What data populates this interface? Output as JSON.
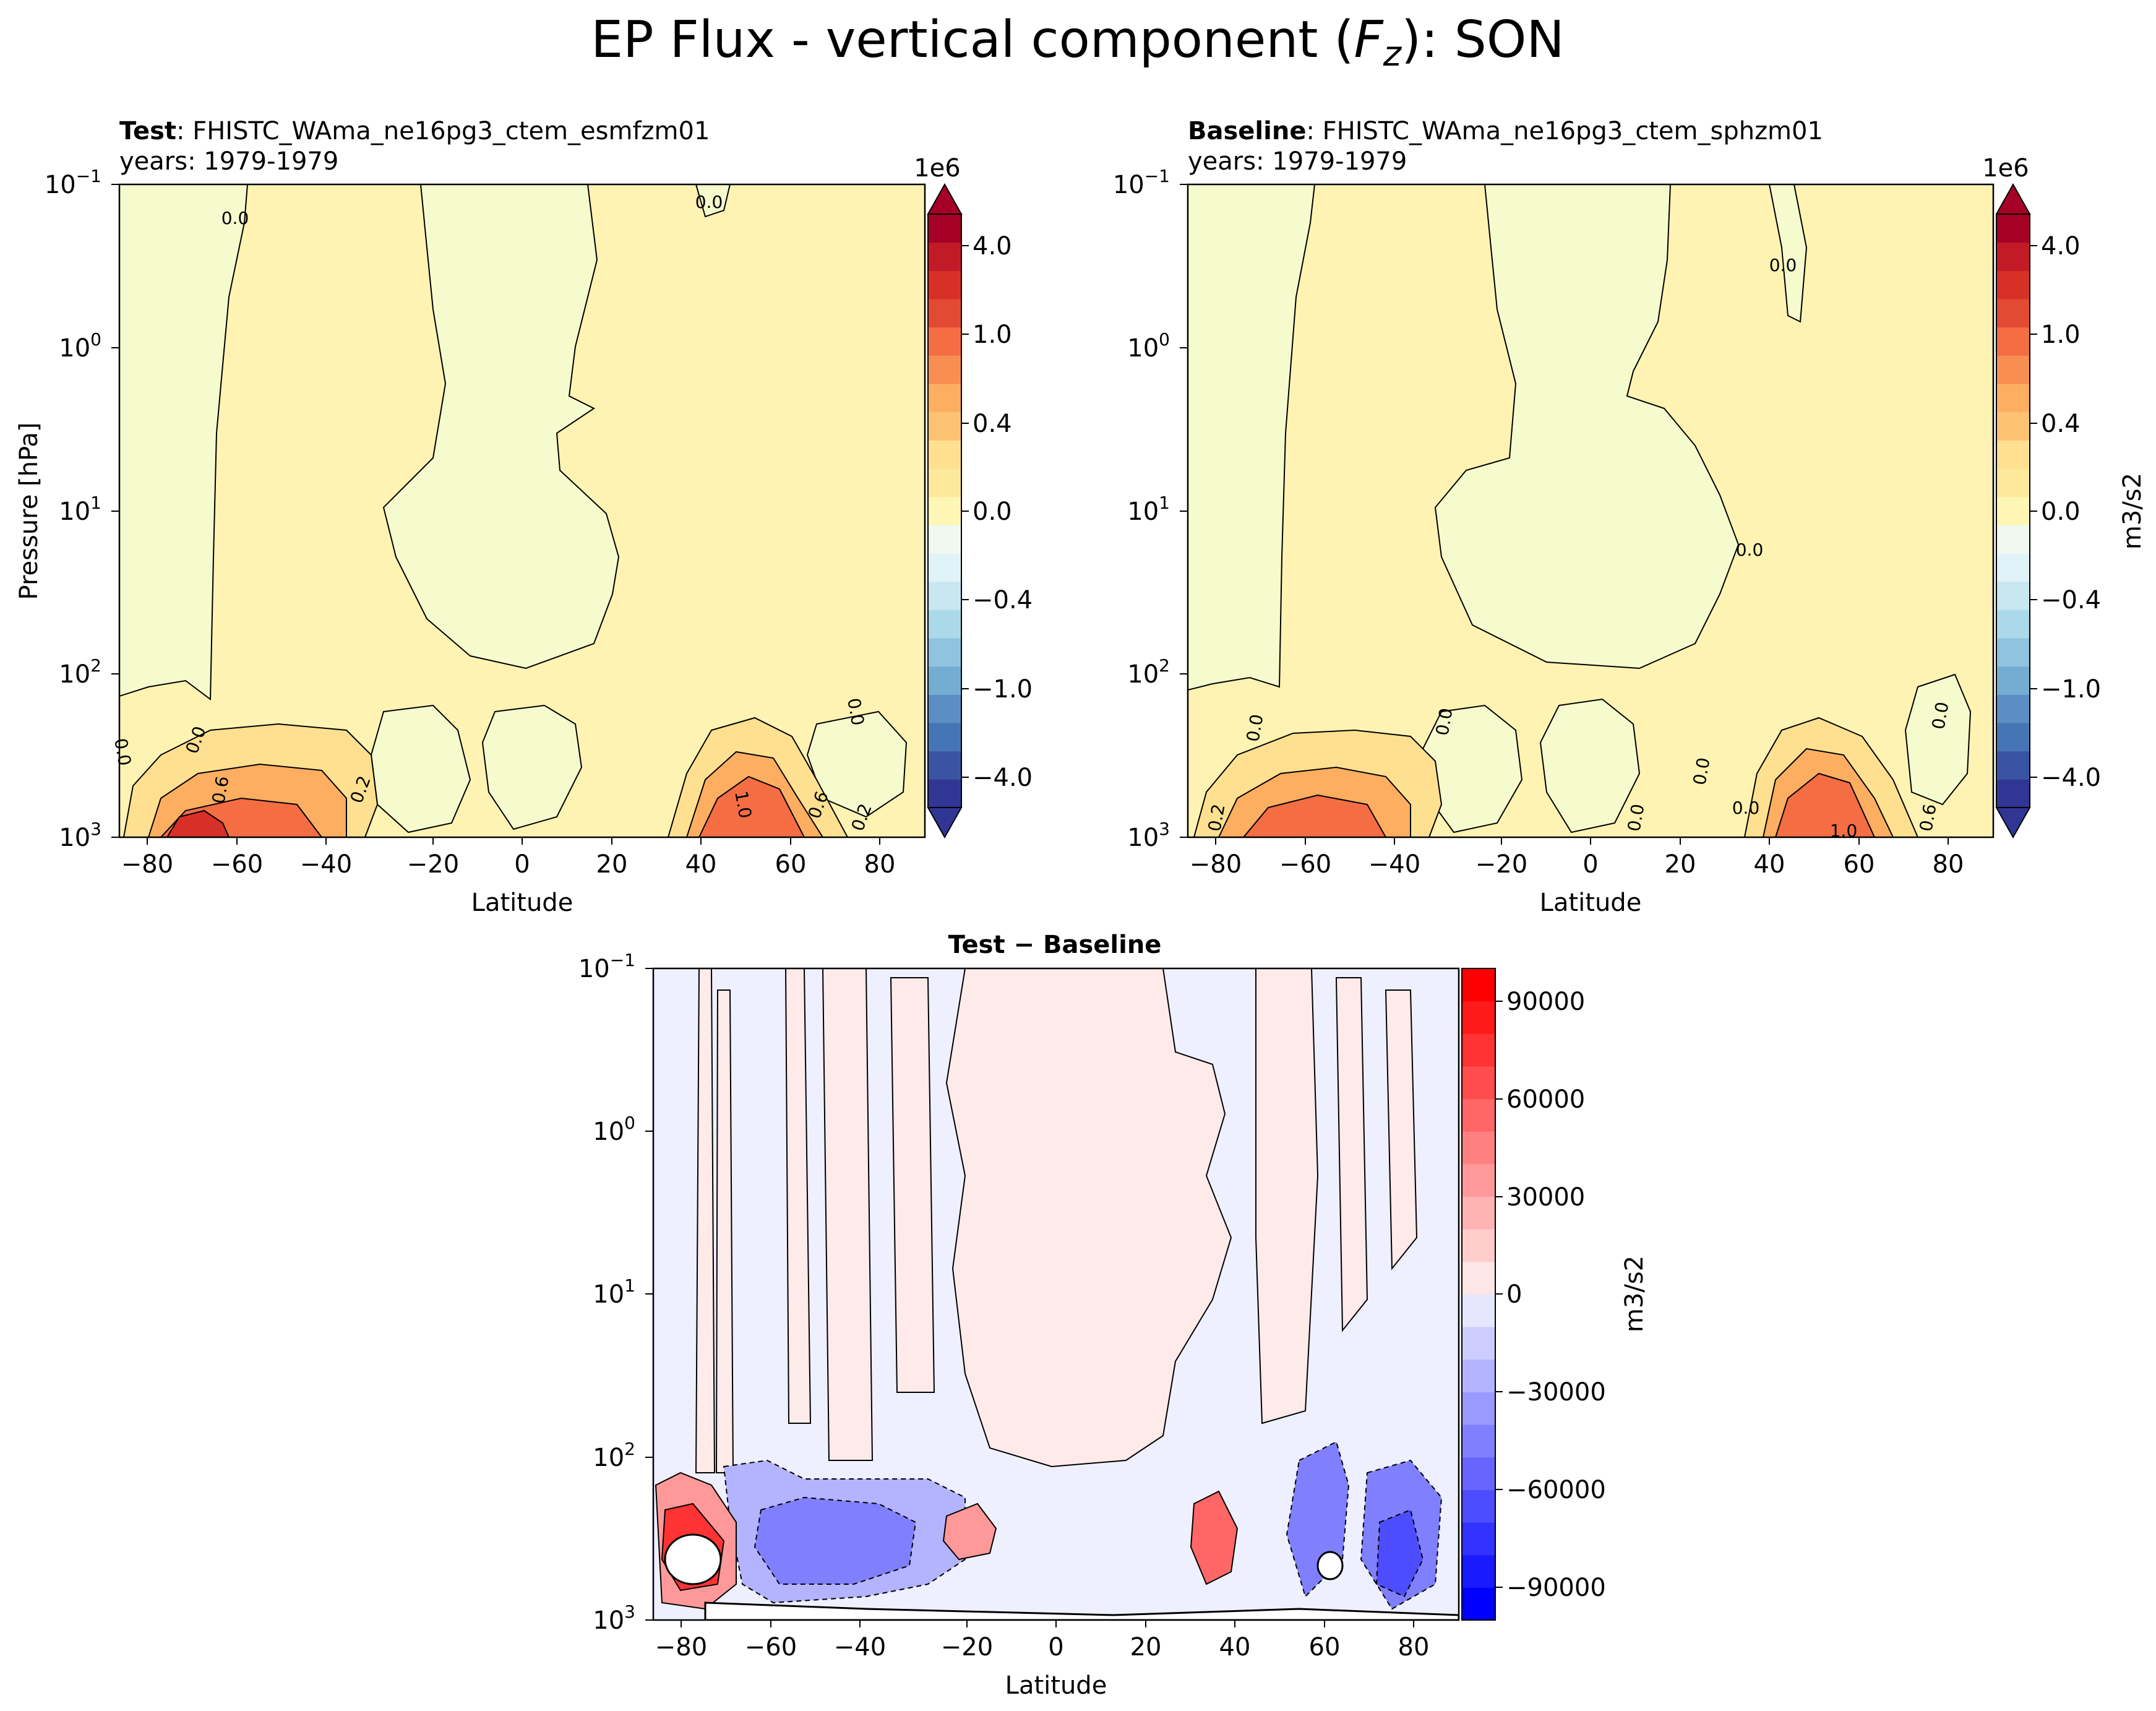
{
  "chart_data": {
    "suptitle_prefix": "EP Flux - vertical component (",
    "suptitle_var": "F",
    "suptitle_sub": "z",
    "suptitle_suffix": "): SON",
    "panels": [
      {
        "id": "test",
        "type": "contourf",
        "title_bold": "Test",
        "title_rest": ": FHISTC_WAma_ne16pg3_ctem_esmfzm01",
        "years_text": "years: 1979-1979",
        "xlabel": "Latitude",
        "ylabel": "Pressure [hPa]",
        "xlim": [
          -90,
          90
        ],
        "xticks": [
          "−80",
          "−60",
          "−40",
          "−20",
          "0",
          "20",
          "40",
          "60",
          "80"
        ],
        "ylim_hpa": [
          1000,
          0.1
        ],
        "yscale": "log",
        "ytick_bases": [
          "10",
          "10",
          "10",
          "10",
          "10"
        ],
        "ytick_exps": [
          "−1",
          "0",
          "1",
          "2",
          "3"
        ],
        "contour_labels": [
          "0.0",
          "0.0",
          "0.0",
          "0.0",
          "0.2",
          "0.2",
          "0.6",
          "0.6",
          "1.0",
          "0.0"
        ]
      },
      {
        "id": "baseline",
        "type": "contourf",
        "title_bold": "Baseline",
        "title_rest": ": FHISTC_WAma_ne16pg3_ctem_sphzm01",
        "years_text": "years: 1979-1979",
        "xlabel": "Latitude",
        "xlim": [
          -90,
          90
        ],
        "xticks": [
          "−80",
          "−60",
          "−40",
          "−20",
          "0",
          "20",
          "40",
          "60",
          "80"
        ],
        "ylim_hpa": [
          1000,
          0.1
        ],
        "yscale": "log",
        "ytick_bases": [
          "10",
          "10",
          "10",
          "10",
          "10"
        ],
        "ytick_exps": [
          "−1",
          "0",
          "1",
          "2",
          "3"
        ],
        "contour_labels": [
          "0.0",
          "0.0",
          "0.0",
          "0.0",
          "0.0",
          "0.0",
          "0.0",
          "0.0",
          "1.0",
          "0.2",
          "0.6"
        ]
      },
      {
        "id": "diff",
        "type": "contourf",
        "title_bold": "Test − Baseline",
        "xlabel": "Latitude",
        "xlim": [
          -90,
          90
        ],
        "xticks": [
          "−80",
          "−60",
          "−40",
          "−20",
          "0",
          "20",
          "40",
          "60",
          "80"
        ],
        "ylim_hpa": [
          1000,
          0.1
        ],
        "yscale": "log",
        "ytick_bases": [
          "10",
          "10",
          "10",
          "10",
          "10"
        ],
        "ytick_exps": [
          "−1",
          "0",
          "1",
          "2",
          "3"
        ]
      }
    ],
    "colorbars": [
      {
        "id": "main",
        "cmap": "RdYlBu_r",
        "extend": "both",
        "offset_text": "1e6",
        "label": "m3/s2",
        "ticks": [
          "4.0",
          "1.0",
          "0.4",
          "0.0",
          "−0.4",
          "−1.0",
          "−4.0"
        ],
        "levels": [
          -5,
          -4,
          -3,
          -2,
          -1,
          -0.8,
          -0.6,
          -0.4,
          -0.2,
          -0.1,
          0,
          0.1,
          0.2,
          0.4,
          0.6,
          0.8,
          1,
          2,
          3,
          4,
          5
        ],
        "colors": [
          "#313695",
          "#3a54a4",
          "#4575b4",
          "#5b8fc3",
          "#74add1",
          "#90c3dd",
          "#abd9e9",
          "#c9e7f1",
          "#e0f3f8",
          "#eff9f0",
          "#fdf6b5",
          "#fee99a",
          "#fee090",
          "#fdc373",
          "#fdae61",
          "#f88e52",
          "#f46d43",
          "#e34a33",
          "#d73027",
          "#c21b27",
          "#a50026"
        ]
      },
      {
        "id": "diff",
        "cmap": "bwr",
        "extend": "neither",
        "label": "m3/s2",
        "ticks": [
          "90000",
          "60000",
          "30000",
          "0",
          "−30000",
          "−60000",
          "−90000"
        ],
        "levels": [
          -100000,
          -90000,
          -80000,
          -70000,
          -60000,
          -50000,
          -40000,
          -30000,
          -20000,
          -10000,
          0,
          10000,
          20000,
          30000,
          40000,
          50000,
          60000,
          70000,
          80000,
          90000,
          100000
        ],
        "colors": [
          "#0000ff",
          "#1a1aff",
          "#3333ff",
          "#4d4dff",
          "#6666ff",
          "#8080ff",
          "#9999ff",
          "#b3b3ff",
          "#ccccff",
          "#e6e6ff",
          "#ffe6e6",
          "#ffcccc",
          "#ffb3b3",
          "#ff9999",
          "#ff8080",
          "#ff6666",
          "#ff4d4d",
          "#ff3333",
          "#ff1a1a",
          "#ff0000"
        ]
      }
    ]
  }
}
